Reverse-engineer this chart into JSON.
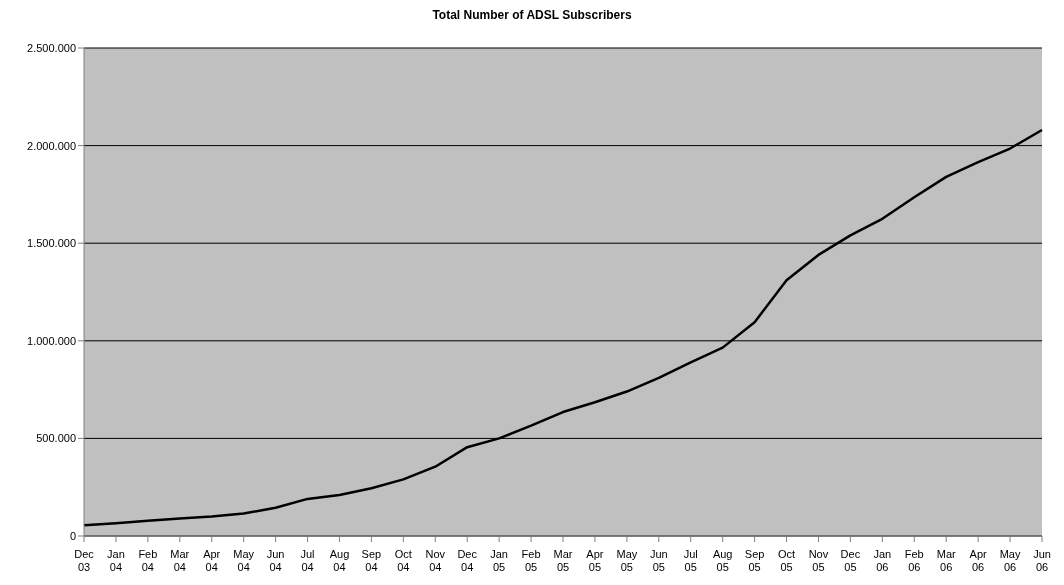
{
  "chart_data": {
    "type": "line",
    "title": "Total Number of ADSL Subscribers",
    "categories": [
      "Dec 03",
      "Jan 04",
      "Feb 04",
      "Mar 04",
      "Apr 04",
      "May 04",
      "Jun 04",
      "Jul 04",
      "Aug 04",
      "Sep 04",
      "Oct 04",
      "Nov 04",
      "Dec 04",
      "Jan 05",
      "Feb 05",
      "Mar 05",
      "Apr 05",
      "May 05",
      "Jun 05",
      "Jul 05",
      "Aug 05",
      "Sep 05",
      "Oct 05",
      "Nov 05",
      "Dec 05",
      "Jan 06",
      "Feb 06",
      "Mar 06",
      "Apr 06",
      "May 06",
      "Jun 06"
    ],
    "series": [
      {
        "color": "#000000",
        "values": [
          55000,
          65000,
          78000,
          90000,
          100000,
          115000,
          145000,
          190000,
          210000,
          245000,
          290000,
          355000,
          455000,
          500000,
          565000,
          635000,
          685000,
          740000,
          810000,
          890000,
          965000,
          1095000,
          1310000,
          1440000,
          1540000,
          1625000,
          1735000,
          1840000,
          1915000,
          1985000,
          2080000
        ]
      }
    ],
    "ylim": [
      0,
      2500000
    ],
    "yticks": [
      0,
      {
        "value": 500000,
        "label": "500.000"
      },
      {
        "value": 1000000,
        "label": "1.000.000"
      },
      {
        "value": 1500000,
        "label": "1.500.000"
      },
      {
        "value": 2000000,
        "label": "2.000.000"
      },
      {
        "value": 2500000,
        "label": "2.500.000"
      }
    ],
    "grid": "y",
    "marker": "none",
    "line_style": "solid"
  }
}
